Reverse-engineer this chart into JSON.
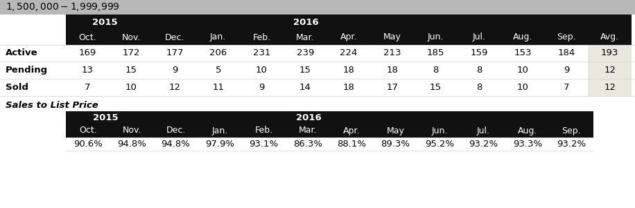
{
  "title": "$1,500,000 - $1,999,999",
  "title_bg": "#b8b8b8",
  "header_bg": "#111111",
  "avg_col_bg": "#e8e8df",
  "row_labels": [
    "Active",
    "Pending",
    "Sold"
  ],
  "month_labels": [
    "Oct.",
    "Nov.",
    "Dec.",
    "Jan.",
    "Feb.",
    "Mar.",
    "Apr.",
    "May",
    "Jun.",
    "Jul.",
    "Aug.",
    "Sep.",
    "Avg."
  ],
  "data_Active": [
    169,
    172,
    177,
    206,
    231,
    239,
    224,
    213,
    185,
    159,
    153,
    184,
    193
  ],
  "data_Pending": [
    13,
    15,
    9,
    5,
    10,
    15,
    18,
    18,
    8,
    8,
    10,
    9,
    12
  ],
  "data_Sold": [
    7,
    10,
    12,
    11,
    9,
    14,
    18,
    17,
    15,
    8,
    10,
    7,
    12
  ],
  "sales_to_list_label": "Sales to List Price",
  "sales_month_labels": [
    "Oct.",
    "Nov.",
    "Dec.",
    "Jan.",
    "Feb.",
    "Mar.",
    "Apr.",
    "May",
    "Jun.",
    "Jul.",
    "Aug.",
    "Sep."
  ],
  "sales_data": [
    "90.6%",
    "94.8%",
    "94.8%",
    "97.9%",
    "93.1%",
    "86.3%",
    "88.1%",
    "89.3%",
    "95.2%",
    "93.2%",
    "93.3%",
    "93.2%"
  ],
  "white": "#ffffff",
  "black": "#000000",
  "light_gray_line": "#d0d0d0"
}
